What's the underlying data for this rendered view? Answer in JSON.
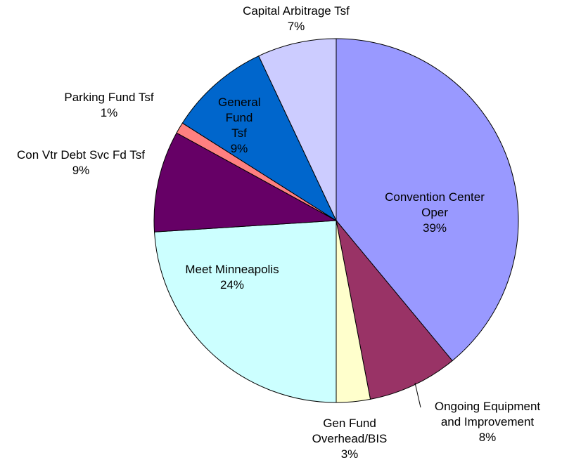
{
  "chart_data": {
    "type": "pie",
    "categories": [
      "Convention Center Oper",
      "Ongoing Equipment and Improvement",
      "Gen Fund Overhead/BIS",
      "Meet Minneapolis",
      "Con Vtr Debt Svc Fd Tsf",
      "Parking Fund Tsf",
      "General Fund Tsf",
      "Capital Arbitrage Tsf"
    ],
    "values": [
      39,
      8,
      3,
      24,
      9,
      1,
      9,
      7
    ],
    "value_labels": [
      "39%",
      "8%",
      "3%",
      "24%",
      "9%",
      "1%",
      "9%",
      "7%"
    ],
    "colors": [
      "#9999ff",
      "#993366",
      "#ffffcc",
      "#ccffff",
      "#660066",
      "#ff8080",
      "#0066cc",
      "#ccccff"
    ]
  }
}
